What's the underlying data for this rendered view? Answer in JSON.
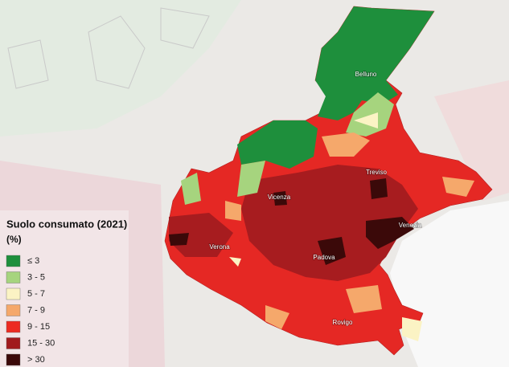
{
  "legend": {
    "title": "Suolo consumato (2021)",
    "unit": "(%)",
    "items": [
      {
        "label": "≤ 3",
        "color": "#1e8f3c"
      },
      {
        "label": "3 - 5",
        "color": "#a6d47e"
      },
      {
        "label": "5 - 7",
        "color": "#fbf3c4"
      },
      {
        "label": "7 - 9",
        "color": "#f5a86b"
      },
      {
        "label": "9 - 15",
        "color": "#ec2b22"
      },
      {
        "label": "15 - 30",
        "color": "#a11a1d"
      },
      {
        "label": "> 30",
        "color": "#3b0909"
      }
    ]
  },
  "places": [
    {
      "label": "Belluno"
    },
    {
      "label": "Treviso"
    },
    {
      "label": "Vicenza"
    },
    {
      "label": "Venezia"
    },
    {
      "label": "Verona"
    },
    {
      "label": "Padova"
    },
    {
      "label": "Rovigo"
    }
  ]
}
